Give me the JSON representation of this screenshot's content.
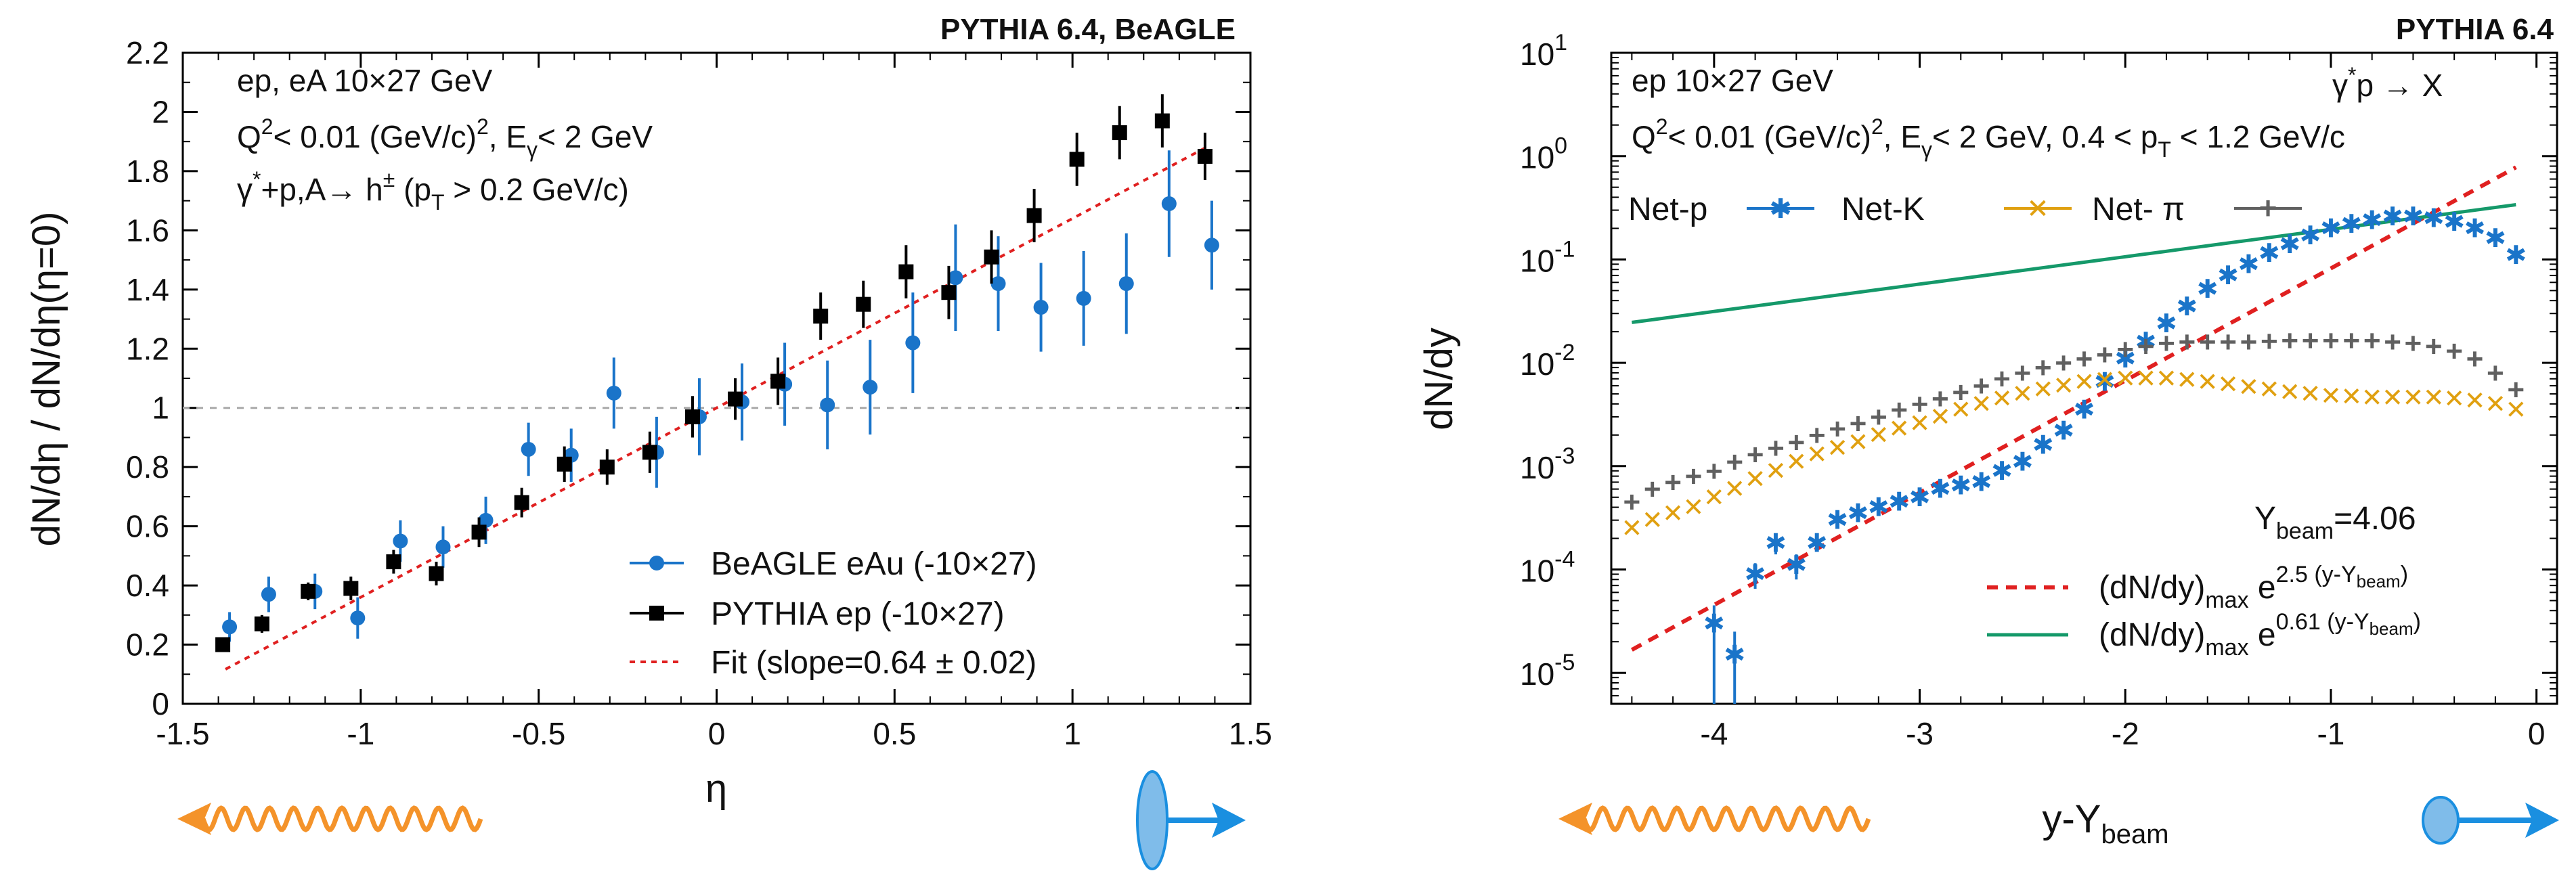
{
  "chart_data": [
    {
      "type": "scatter",
      "header": "PYTHIA 6.4, BeAGLE",
      "annotations": [
        "ep, eA 10×27 GeV",
        "Q",
        "< 0.01 (GeV/c)",
        ", E",
        "< 2 GeV",
        "γ",
        "+p,A→ h",
        " (p",
        " > 0.2 GeV/c)"
      ],
      "ann_sup_2": "2",
      "ann_sub_gamma": "γ",
      "ann_sup_star": "*",
      "ann_sup_pm": "±",
      "ann_sub_T": "T",
      "xlabel": "η",
      "ylabel": "dN/dη / dN/dη(η=0)",
      "xlim": [
        -1.5,
        1.5
      ],
      "ylim": [
        0,
        2.2
      ],
      "xticks": [
        -1.5,
        -1,
        -0.5,
        0,
        0.5,
        1,
        1.5
      ],
      "yticks": [
        0,
        0.2,
        0.4,
        0.6,
        0.8,
        1,
        1.2,
        1.4,
        1.6,
        1.8,
        2,
        2.2
      ],
      "reference_line": 1,
      "legend": [
        "BeAGLE eAu (-10×27)",
        "PYTHIA ep (-10×27)",
        "Fit (slope=0.64 ± 0.02)"
      ],
      "series": [
        {
          "name": "BeAGLE eAu (-10×27)",
          "color": "#1a74c9",
          "marker": "circle",
          "x": [
            -1.38,
            -1.27,
            -1.14,
            -1.02,
            -0.9,
            -0.78,
            -0.66,
            -0.54,
            -0.42,
            -0.3,
            -0.18,
            -0.06,
            0.06,
            0.18,
            0.3,
            0.42,
            0.54,
            0.66,
            0.78,
            0.9,
            1.02,
            1.14,
            1.26,
            1.38
          ],
          "y": [
            0.26,
            0.37,
            0.38,
            0.29,
            0.55,
            0.53,
            0.62,
            0.86,
            0.84,
            1.05,
            0.85,
            0.97,
            1.02,
            1.08,
            1.01,
            1.07,
            1.22,
            1.44,
            1.42,
            1.34,
            1.37,
            1.42,
            1.69,
            1.55
          ],
          "err": [
            0.05,
            0.06,
            0.06,
            0.07,
            0.07,
            0.07,
            0.08,
            0.09,
            0.09,
            0.12,
            0.12,
            0.13,
            0.13,
            0.14,
            0.15,
            0.16,
            0.17,
            0.18,
            0.16,
            0.15,
            0.16,
            0.17,
            0.18,
            0.15
          ]
        },
        {
          "name": "PYTHIA ep (-10×27)",
          "color": "#000000",
          "marker": "square",
          "x": [
            -1.38,
            -1.27,
            -1.14,
            -1.02,
            -0.9,
            -0.78,
            -0.66,
            -0.54,
            -0.42,
            -0.3,
            -0.18,
            -0.06,
            0.06,
            0.18,
            0.3,
            0.42,
            0.54,
            0.66,
            0.78,
            0.9,
            1.02,
            1.14,
            1.26,
            1.38
          ],
          "y": [
            0.2,
            0.27,
            0.38,
            0.39,
            0.48,
            0.44,
            0.58,
            0.68,
            0.81,
            0.8,
            0.85,
            0.97,
            1.03,
            1.09,
            1.31,
            1.35,
            1.46,
            1.39,
            1.51,
            1.65,
            1.84,
            1.93,
            1.97,
            1.85
          ],
          "err": [
            0.02,
            0.03,
            0.03,
            0.04,
            0.04,
            0.04,
            0.05,
            0.05,
            0.06,
            0.06,
            0.07,
            0.07,
            0.07,
            0.08,
            0.08,
            0.08,
            0.09,
            0.09,
            0.09,
            0.09,
            0.09,
            0.09,
            0.09,
            0.08
          ]
        }
      ],
      "fit": {
        "name": "Fit (slope=0.64 ± 0.02)",
        "color": "#e02020",
        "slope": 0.64,
        "intercept": 1.0,
        "xrange": [
          -1.38,
          1.38
        ]
      }
    },
    {
      "type": "scatter",
      "header": "PYTHIA 6.4",
      "annotations": [
        "ep 10×27 GeV",
        "Q",
        "< 0.01 (GeV/c)",
        ", E",
        "< 2 GeV, 0.4 < p",
        " < 1.2 GeV/c"
      ],
      "ann_sup_2": "2",
      "ann_sub_gamma": "γ",
      "ann_sub_T": "T",
      "process": [
        "γ",
        "*",
        "p → X"
      ],
      "ybeam_label": "Y",
      "ybeam_sub": "beam",
      "ybeam_value": "=4.06",
      "xlabel": "y-Y",
      "xlabel_sub": "beam",
      "ylabel": "dN/dy",
      "xlim": [
        -4.5,
        0.1
      ],
      "ylim_log10": [
        -5.3,
        1
      ],
      "log_y": true,
      "xticks": [
        -4,
        -3,
        -2,
        -1,
        0
      ],
      "ytick_base": "10",
      "ytick_exponents": [
        "1",
        "0",
        "-1",
        "-2",
        "-3",
        "-4",
        "-5"
      ],
      "legend_top": [
        "Net-p",
        "Net-K",
        "Net- π"
      ],
      "legend_fit": [
        {
          "text": "(dN/dy)",
          "sub": "max",
          "base": " e",
          "exp": "2.5 (y-Y",
          "exp_sub": "beam",
          "close": ")"
        },
        {
          "text": "(dN/dy)",
          "sub": "max",
          "base": " e",
          "exp": "0.61 (y-Y",
          "exp_sub": "beam",
          "close": ")"
        }
      ],
      "series": [
        {
          "name": "Net-p",
          "color": "#1a74c9",
          "marker": "star",
          "x": [
            -4.0,
            -3.9,
            -3.8,
            -3.7,
            -3.6,
            -3.5,
            -3.4,
            -3.3,
            -3.2,
            -3.1,
            -3.0,
            -2.9,
            -2.8,
            -2.7,
            -2.6,
            -2.5,
            -2.4,
            -2.3,
            -2.2,
            -2.1,
            -2.0,
            -1.9,
            -1.8,
            -1.7,
            -1.6,
            -1.5,
            -1.4,
            -1.3,
            -1.2,
            -1.1,
            -1.0,
            -0.9,
            -0.8,
            -0.7,
            -0.6,
            -0.5,
            -0.4,
            -0.3,
            -0.2,
            -0.1
          ],
          "y": [
            3e-05,
            1.5e-05,
            9e-05,
            0.00018,
            0.00011,
            0.00018,
            0.0003,
            0.00035,
            0.0004,
            0.00045,
            0.0005,
            0.0006,
            0.00065,
            0.0007,
            0.0009,
            0.0011,
            0.0016,
            0.0022,
            0.0035,
            0.0065,
            0.011,
            0.016,
            0.024,
            0.035,
            0.052,
            0.07,
            0.09,
            0.115,
            0.14,
            0.17,
            0.2,
            0.22,
            0.24,
            0.26,
            0.26,
            0.25,
            0.23,
            0.2,
            0.16,
            0.11
          ],
          "err_hi": [
            1.5e-05,
            1e-05,
            2.5e-05,
            4e-05,
            3e-05,
            3e-05,
            0,
            0,
            0,
            0,
            0,
            0,
            0,
            0,
            0,
            0,
            0,
            0,
            0,
            0,
            0,
            0,
            0,
            0,
            0,
            0,
            0,
            0,
            0,
            0,
            0,
            0,
            0,
            0,
            0,
            0,
            0,
            0,
            0,
            0
          ],
          "err_lo_to_bottom": [
            true,
            true,
            false,
            false,
            false,
            false,
            false,
            false,
            false,
            false,
            false,
            false,
            false,
            false,
            false,
            false,
            false,
            false,
            false,
            false,
            false,
            false,
            false,
            false,
            false,
            false,
            false,
            false,
            false,
            false,
            false,
            false,
            false,
            false,
            false,
            false,
            false,
            false,
            false,
            false
          ]
        },
        {
          "name": "Net-K",
          "color": "#e0a010",
          "marker": "x",
          "x": [
            -4.4,
            -4.3,
            -4.2,
            -4.1,
            -4.0,
            -3.9,
            -3.8,
            -3.7,
            -3.6,
            -3.5,
            -3.4,
            -3.3,
            -3.2,
            -3.1,
            -3.0,
            -2.9,
            -2.8,
            -2.7,
            -2.6,
            -2.5,
            -2.4,
            -2.3,
            -2.2,
            -2.1,
            -2.0,
            -1.9,
            -1.8,
            -1.7,
            -1.6,
            -1.5,
            -1.4,
            -1.3,
            -1.2,
            -1.1,
            -1.0,
            -0.9,
            -0.8,
            -0.7,
            -0.6,
            -0.5,
            -0.4,
            -0.3,
            -0.2,
            -0.1
          ],
          "y": [
            0.00025,
            0.0003,
            0.00035,
            0.0004,
            0.0005,
            0.0006,
            0.00075,
            0.0009,
            0.0011,
            0.0013,
            0.0015,
            0.0017,
            0.002,
            0.0023,
            0.0026,
            0.003,
            0.0035,
            0.004,
            0.0045,
            0.005,
            0.0055,
            0.006,
            0.0065,
            0.0068,
            0.007,
            0.007,
            0.007,
            0.0068,
            0.0065,
            0.0062,
            0.0058,
            0.0055,
            0.0052,
            0.005,
            0.0048,
            0.0047,
            0.0046,
            0.0046,
            0.0046,
            0.0046,
            0.0045,
            0.0043,
            0.004,
            0.0035
          ]
        },
        {
          "name": "Net- π",
          "color": "#606060",
          "marker": "plus",
          "x": [
            -4.4,
            -4.3,
            -4.2,
            -4.1,
            -4.0,
            -3.9,
            -3.8,
            -3.7,
            -3.6,
            -3.5,
            -3.4,
            -3.3,
            -3.2,
            -3.1,
            -3.0,
            -2.9,
            -2.8,
            -2.7,
            -2.6,
            -2.5,
            -2.4,
            -2.3,
            -2.2,
            -2.1,
            -2.0,
            -1.9,
            -1.8,
            -1.7,
            -1.6,
            -1.5,
            -1.4,
            -1.3,
            -1.2,
            -1.1,
            -1.0,
            -0.9,
            -0.8,
            -0.7,
            -0.6,
            -0.5,
            -0.4,
            -0.3,
            -0.2,
            -0.1
          ],
          "y": [
            0.00045,
            0.0006,
            0.0007,
            0.0008,
            0.0009,
            0.0011,
            0.0013,
            0.0015,
            0.0017,
            0.002,
            0.0023,
            0.0026,
            0.003,
            0.0035,
            0.004,
            0.0045,
            0.0052,
            0.006,
            0.007,
            0.008,
            0.009,
            0.01,
            0.011,
            0.012,
            0.0135,
            0.0145,
            0.0155,
            0.016,
            0.016,
            0.016,
            0.016,
            0.0162,
            0.0165,
            0.0165,
            0.0165,
            0.0165,
            0.0165,
            0.016,
            0.0155,
            0.0145,
            0.013,
            0.011,
            0.008,
            0.0055
          ]
        }
      ],
      "fits": [
        {
          "color": "#e02020",
          "dash": true,
          "amplitude": 1.0,
          "slope": 2.5,
          "xrange": [
            -4.4,
            -0.1
          ]
        },
        {
          "color": "#15996a",
          "dash": false,
          "amplitude": 0.36,
          "slope": 0.61,
          "xrange": [
            -4.4,
            -0.1
          ]
        }
      ]
    }
  ],
  "icons": [
    "photon-wave-left-icon",
    "proton-beam-right-icon",
    "photon-wave-left-icon",
    "proton-beam-right-icon"
  ],
  "icon_colors": {
    "wave": "#f4932a",
    "beam": "#1a8fe0",
    "ellipse": "#7fbcea"
  }
}
